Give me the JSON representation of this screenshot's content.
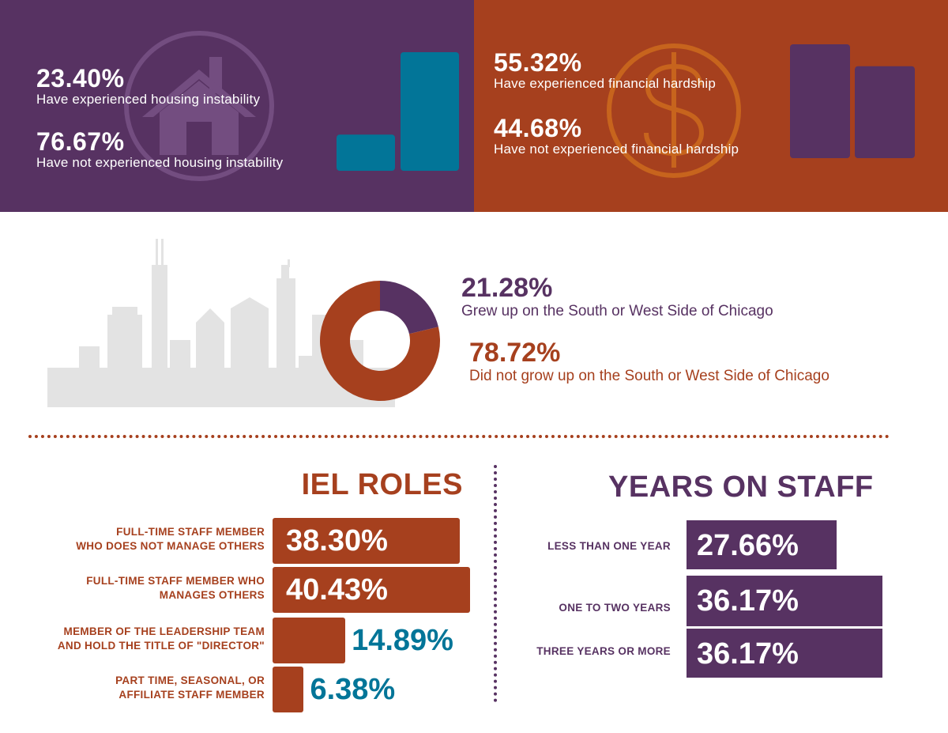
{
  "colors": {
    "purple": "#573262",
    "rust": "#a6401e",
    "teal": "#027598",
    "skyline": "#e3e3e3"
  },
  "housing": {
    "icon": "house-icon",
    "experienced": {
      "pct": "23.40%",
      "label": "Have experienced housing instability"
    },
    "not_experienced": {
      "pct": "76.67%",
      "label": "Have not experienced housing instability"
    }
  },
  "finance": {
    "icon": "dollar-icon",
    "experienced": {
      "pct": "55.32%",
      "label": "Have experienced financial hardship"
    },
    "not_experienced": {
      "pct": "44.68%",
      "label": "Have not experienced financial hardship"
    }
  },
  "chicago": {
    "icon": "chicago-skyline-icon",
    "grew_up": {
      "pct": "21.28%",
      "label": "Grew up on the South or West Side of Chicago"
    },
    "not_grew_up": {
      "pct": "78.72%",
      "label": "Did not grow up on the South or West Side of Chicago"
    }
  },
  "roles": {
    "title": "IEL ROLES",
    "items": [
      {
        "line1": "FULL-TIME STAFF MEMBER",
        "line2": "WHO DOES NOT MANAGE OTHERS",
        "value_label": "38.30%"
      },
      {
        "line1": "FULL-TIME STAFF MEMBER WHO",
        "line2": "MANAGES OTHERS",
        "value_label": "40.43%"
      },
      {
        "line1": "MEMBER OF THE LEADERSHIP TEAM",
        "line2": "AND HOLD THE TITLE OF \"DIRECTOR\"",
        "value_label": "14.89%"
      },
      {
        "line1": "PART TIME, SEASONAL, OR",
        "line2": "AFFILIATE STAFF MEMBER",
        "value_label": "6.38%"
      }
    ]
  },
  "years": {
    "title": "YEARS ON STAFF",
    "items": [
      {
        "label": "LESS THAN ONE YEAR",
        "value_label": "27.66%"
      },
      {
        "label": "ONE TO TWO YEARS",
        "value_label": "36.17%"
      },
      {
        "label": "THREE YEARS OR MORE",
        "value_label": "36.17%"
      }
    ]
  },
  "chart_data": [
    {
      "type": "bar",
      "categories": [
        "Have experienced housing instability",
        "Have not experienced housing instability"
      ],
      "values": [
        23.4,
        76.67
      ]
    },
    {
      "type": "bar",
      "categories": [
        "Have experienced financial hardship",
        "Have not experienced financial hardship"
      ],
      "values": [
        55.32,
        44.68
      ]
    },
    {
      "type": "pie",
      "categories": [
        "Grew up on the South or West Side of Chicago",
        "Did not grow up on the South or West Side of Chicago"
      ],
      "values": [
        21.28,
        78.72
      ]
    },
    {
      "type": "bar",
      "title": "IEL ROLES",
      "categories": [
        "FULL-TIME STAFF MEMBER WHO DOES NOT MANAGE OTHERS",
        "FULL-TIME STAFF MEMBER WHO MANAGES OTHERS",
        "MEMBER OF THE LEADERSHIP TEAM AND HOLD THE TITLE OF \"DIRECTOR\"",
        "PART TIME, SEASONAL, OR AFFILIATE STAFF MEMBER"
      ],
      "values": [
        38.3,
        40.43,
        14.89,
        6.38
      ]
    },
    {
      "type": "bar",
      "title": "YEARS ON STAFF",
      "categories": [
        "LESS THAN ONE YEAR",
        "ONE TO TWO YEARS",
        "THREE YEARS OR MORE"
      ],
      "values": [
        27.66,
        36.17,
        36.17
      ]
    }
  ]
}
